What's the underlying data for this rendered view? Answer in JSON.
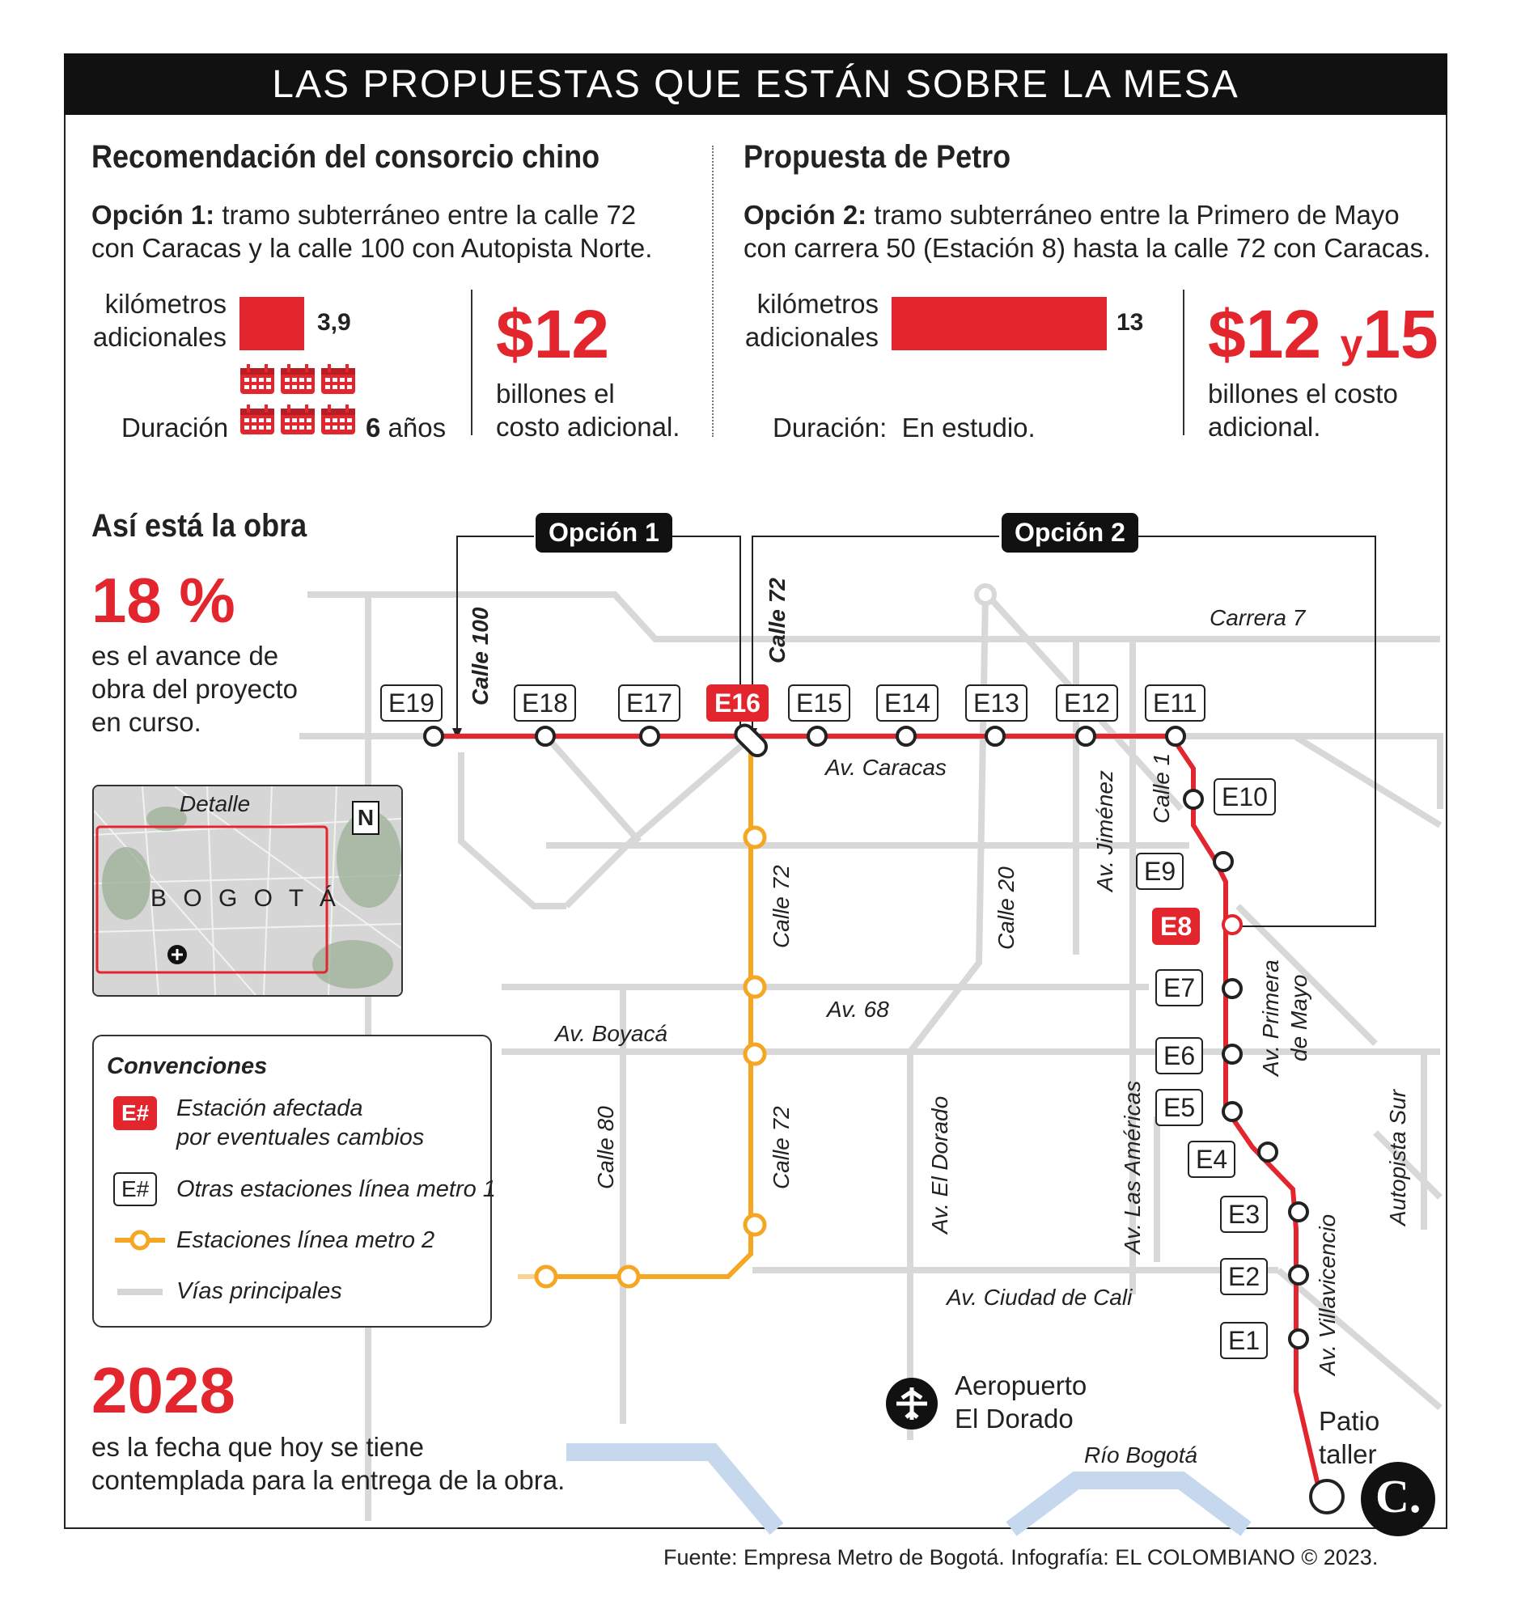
{
  "banner": "LAS PROPUESTAS QUE ESTÁN SOBRE LA MESA",
  "option1": {
    "heading": "Recomendación del consorcio chino",
    "label": "Opción 1:",
    "text_line1": "tramo subterráneo entre la calle 72",
    "text_line2": "con Caracas y la calle 100 con Autopista Norte.",
    "km_label_1": "kilómetros",
    "km_label_2": "adicionales",
    "km_value": "3,9",
    "km_number": 3.9,
    "duration_label": "Duración",
    "duration_value": "6",
    "duration_unit": "años",
    "calendar_count": 6,
    "cost_value": "$12",
    "cost_line1": "billones el",
    "cost_line2": "costo adicional."
  },
  "option2": {
    "heading": "Propuesta de Petro",
    "label": "Opción 2:",
    "text_line1": "tramo subterráneo entre la Primero de Mayo",
    "text_line2": "con carrera 50 (Estación 8) hasta la calle 72 con Caracas.",
    "km_label_1": "kilómetros",
    "km_label_2": "adicionales",
    "km_value": "13",
    "km_number": 13,
    "duration_text": "Duración:  En estudio.",
    "cost_value_a": "$12",
    "cost_y": "y",
    "cost_value_b": "15",
    "cost_line1": "billones el costo",
    "cost_line2": "adicional."
  },
  "work": {
    "heading": "Así está la obra",
    "progress_value": "18 %",
    "progress_line1": "es el avance de",
    "progress_line2": "obra del proyecto",
    "progress_line3": "en curso.",
    "year_value": "2028",
    "year_line1": "es la fecha que hoy se tiene",
    "year_line2": "contemplada para la entrega de la obra."
  },
  "map": {
    "option1_pill": "Opción 1",
    "option2_pill": "Opción 2",
    "calle100_label": "Calle 100",
    "calle72_top_label": "Calle 72",
    "stations_top": [
      "E19",
      "E18",
      "E17",
      "E16",
      "E15",
      "E14",
      "E13",
      "E12",
      "E11"
    ],
    "stations_right": [
      "E10",
      "E9",
      "E8",
      "E7",
      "E6",
      "E5",
      "E4",
      "E3",
      "E2",
      "E1"
    ],
    "affected_stations": [
      "E16",
      "E8"
    ],
    "roads": {
      "carrera7": "Carrera 7",
      "av_caracas": "Av. Caracas",
      "av_jimenez": "Av. Jiménez",
      "calle1": "Calle 1",
      "calle72_a": "Calle 72",
      "calle20": "Calle 20",
      "av68": "Av. 68",
      "av_boyaca": "Av. Boyacá",
      "av_primera_mayo_1": "Av. Primera",
      "av_primera_mayo_2": "de Mayo",
      "calle80": "Calle 80",
      "calle72_b": "Calle 72",
      "av_el_dorado": "Av. El Dorado",
      "av_las_americas": "Av. Las Américas",
      "autopista_sur": "Autopista Sur",
      "av_villavicencio": "Av. Villavicencio",
      "av_ciudad_cali": "Av. Ciudad de Cali",
      "rio_bogota": "Río Bogotá"
    },
    "airport_line1": "Aeropuerto",
    "airport_line2": "El Dorado",
    "patio_line1": "Patio",
    "patio_line2": "taller",
    "detail_label": "Detalle",
    "city_label": "B O G O T Á",
    "north_label": "N"
  },
  "conventions": {
    "title": "Convenciones",
    "affected_badge": "E#",
    "affected_line1": "Estación afectada",
    "affected_line2": "por eventuales cambios",
    "other_badge": "E#",
    "other_text": "Otras estaciones línea metro 1",
    "line2_text": "Estaciones línea metro 2",
    "roads_text": "Vías principales"
  },
  "source": "Fuente: Empresa Metro de Bogotá. Infografía: EL COLOMBIANO © 2023.",
  "logo": "C.",
  "colors": {
    "accent_red": "#e3262d",
    "metro2_orange": "#f5a623",
    "road_gray": "#d5d5d5",
    "river_blue": "#c6d8ee"
  }
}
